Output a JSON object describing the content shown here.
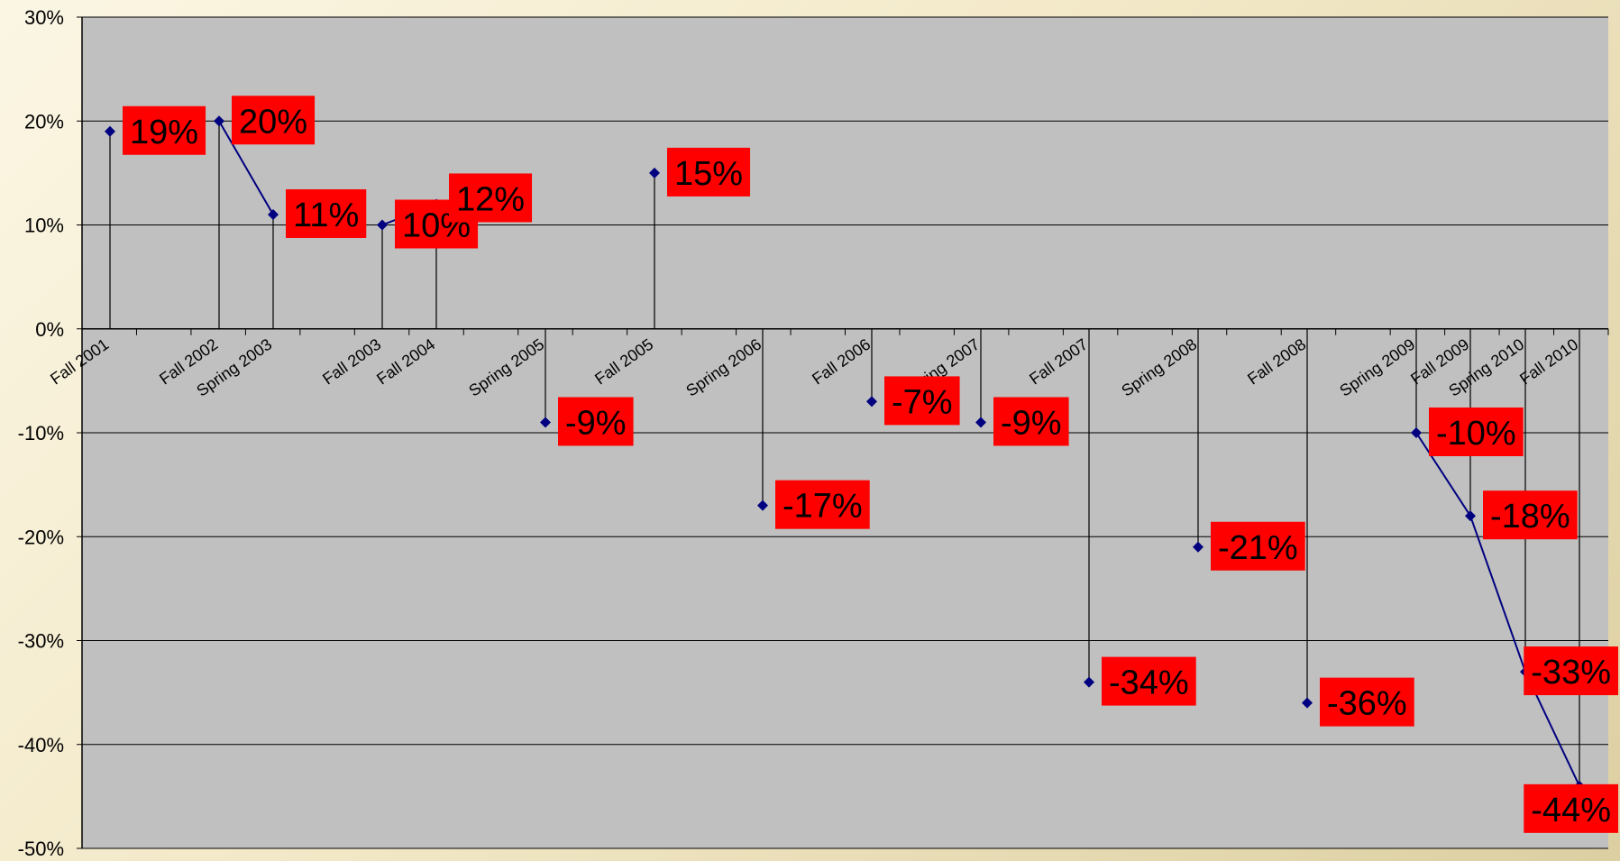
{
  "chart_data": {
    "type": "line",
    "title": "",
    "xlabel": "",
    "ylabel": "",
    "ylim": [
      -50,
      30
    ],
    "y_tick_step": 10,
    "y_tick_suffix": "%",
    "grid": true,
    "legend": "none",
    "categories": [
      "Fall 2001",
      "Fall 2002",
      "Spring 2003",
      "Fall 2003",
      "Fall 2004",
      "Spring 2005",
      "Fall 2005",
      "Spring 2006",
      "Fall 2006",
      "Spring 2007",
      "Fall 2007",
      "Spring 2008",
      "Fall 2008",
      "Spring 2009",
      "Fall 2009",
      "Spring 2010",
      "Fall 2010"
    ],
    "series": [
      {
        "points": [
          {
            "x": "Fall 2001",
            "y": 19,
            "label": "19%"
          },
          {
            "x": "Fall 2002",
            "y": 20,
            "label": "20%"
          },
          {
            "x": "Spring 2003",
            "y": 11,
            "label": "11%"
          },
          {
            "x": "Fall 2003",
            "y": 10,
            "label": "10%"
          },
          {
            "x": "Fall 2004",
            "y": 12,
            "label": "12%"
          },
          {
            "x": "Spring 2005",
            "y": -9,
            "label": "-9%"
          },
          {
            "x": "Fall 2005",
            "y": 15,
            "label": "15%"
          },
          {
            "x": "Spring 2006",
            "y": -17,
            "label": "-17%"
          },
          {
            "x": "Fall 2006",
            "y": -7,
            "label": "-7%"
          },
          {
            "x": "Spring 2007",
            "y": -9,
            "label": "-9%"
          },
          {
            "x": "Fall 2007",
            "y": -34,
            "label": "-34%"
          },
          {
            "x": "Spring 2008",
            "y": -21,
            "label": "-21%"
          },
          {
            "x": "Fall 2008",
            "y": -36,
            "label": "-36%"
          },
          {
            "x": "Spring 2009",
            "y": -10,
            "label": "-10%"
          },
          {
            "x": "Fall 2009",
            "y": -18,
            "label": "-18%"
          },
          {
            "x": "Spring 2010",
            "y": -33,
            "label": "-33%"
          },
          {
            "x": "Fall 2010",
            "y": -44,
            "label": "-44%"
          }
        ]
      }
    ],
    "colors": {
      "plot_background": "#c0c0c0",
      "line": "#000080",
      "marker": "#000080",
      "label_background": "#ff0000",
      "label_text": "#000000",
      "gridline": "#000000"
    }
  }
}
